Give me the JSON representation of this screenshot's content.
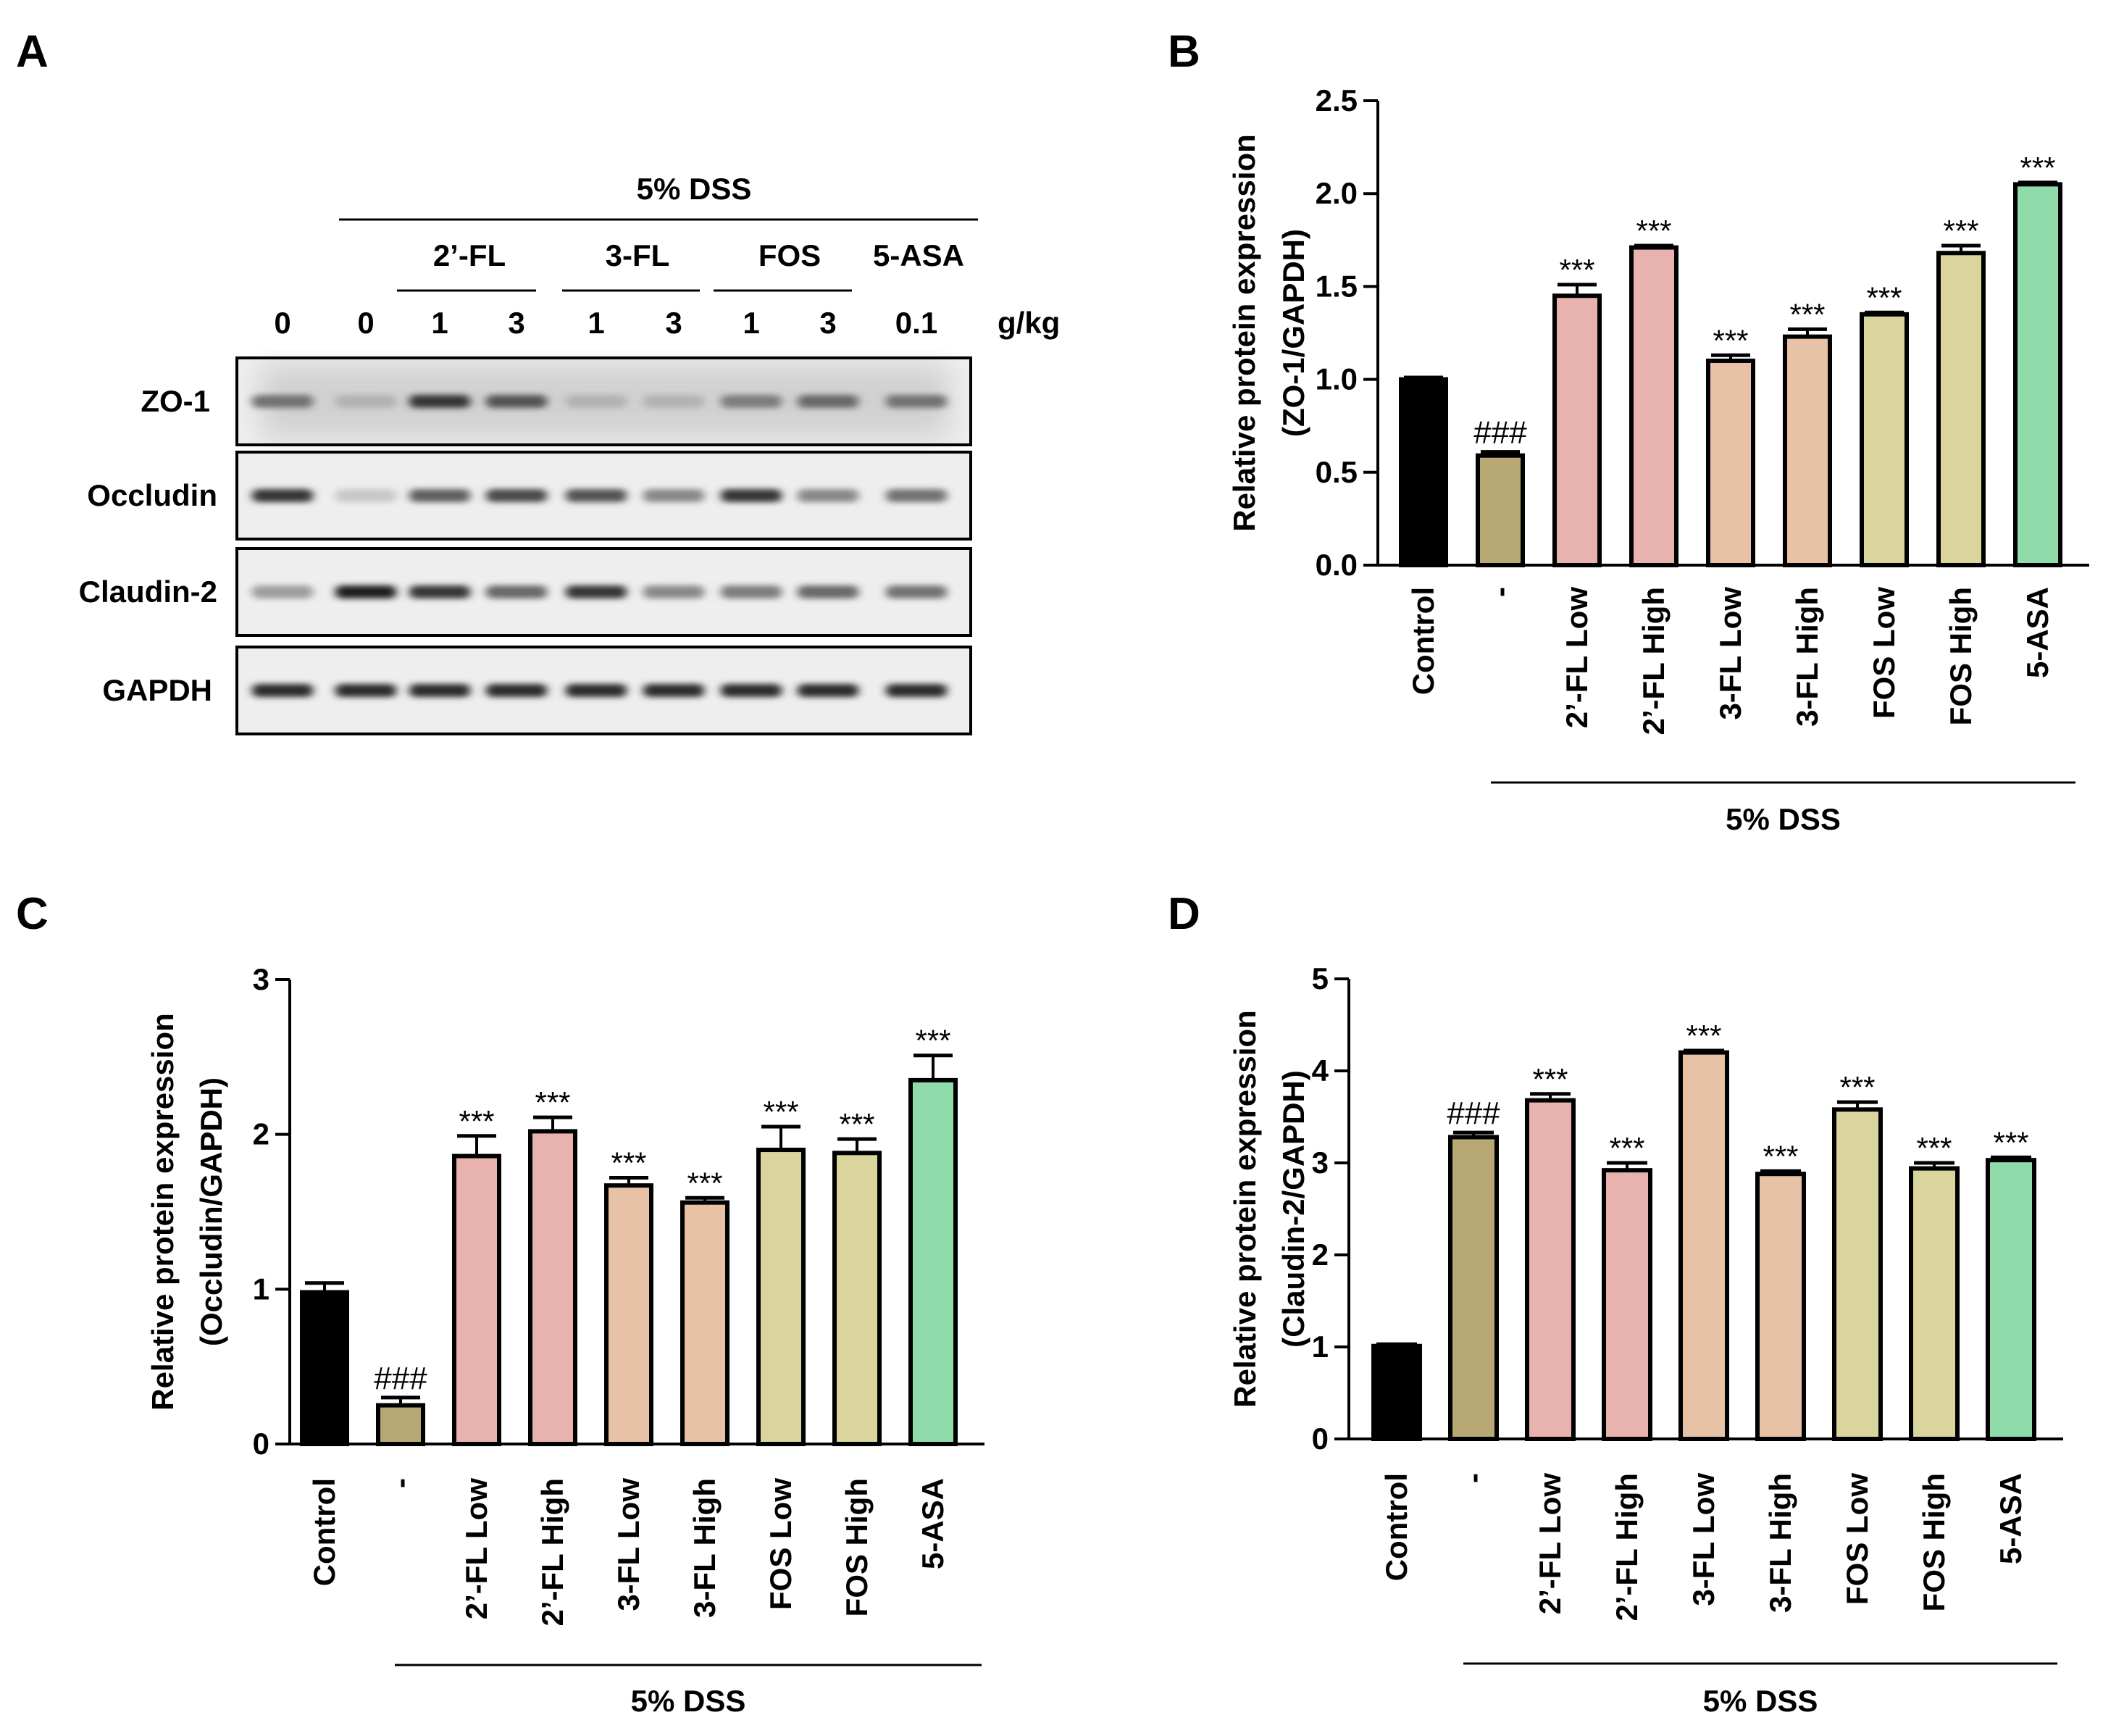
{
  "colors": {
    "black": "#000000",
    "olive": "#b8a874",
    "pink": "#e8b3ae",
    "peach": "#e8c2a6",
    "khaki": "#d9d59c",
    "green": "#8fdcaa"
  },
  "panel_a": {
    "letter": "A",
    "treatment": "5% DSS",
    "groups": [
      "2’-FL",
      "3-FL",
      "FOS",
      "5-ASA"
    ],
    "doses": [
      "0",
      "0",
      "1",
      "3",
      "1",
      "3",
      "1",
      "3",
      "0.1"
    ],
    "unit": "g/kg",
    "rows": [
      {
        "label": "ZO-1",
        "intensity": [
          0.55,
          0.25,
          0.85,
          0.7,
          0.25,
          0.25,
          0.5,
          0.6,
          0.55
        ],
        "smear": 0.35
      },
      {
        "label": "Occludin",
        "intensity": [
          0.85,
          0.15,
          0.65,
          0.75,
          0.7,
          0.45,
          0.85,
          0.45,
          0.55
        ],
        "smear": 0.0
      },
      {
        "label": "Claudin-2",
        "intensity": [
          0.35,
          0.95,
          0.85,
          0.6,
          0.85,
          0.45,
          0.5,
          0.6,
          0.55
        ],
        "smear": 0.0
      },
      {
        "label": "GAPDH",
        "intensity": [
          0.9,
          0.9,
          0.9,
          0.9,
          0.9,
          0.9,
          0.9,
          0.9,
          0.9
        ],
        "smear": 0.0
      }
    ]
  },
  "chart_data": [
    {
      "panel": "B",
      "type": "bar",
      "ylabel_line1": "Relative protein expression",
      "ylabel_line2": "(ZO-1/GAPDH)",
      "ylim": [
        0,
        2.5
      ],
      "yticks": [
        "0.0",
        "0.5",
        "1.0",
        "1.5",
        "2.0",
        "2.5"
      ],
      "tick_values": [
        0,
        0.5,
        1.0,
        1.5,
        2.0,
        2.5
      ],
      "categories": [
        "Control",
        "-",
        "2’-FL Low",
        "2’-FL High",
        "3-FL Low",
        "3-FL High",
        "FOS Low",
        "FOS High",
        "5-ASA"
      ],
      "values": [
        1.0,
        0.59,
        1.45,
        1.71,
        1.1,
        1.23,
        1.35,
        1.68,
        2.05
      ],
      "errors": [
        0.01,
        0.02,
        0.06,
        0.01,
        0.03,
        0.04,
        0.01,
        0.04,
        0.01
      ],
      "annotations": [
        "",
        "###",
        "***",
        "***",
        "***",
        "***",
        "***",
        "***",
        "***"
      ],
      "bar_colors": [
        "black",
        "olive",
        "pink",
        "pink",
        "peach",
        "peach",
        "khaki",
        "khaki",
        "green"
      ],
      "group_label": "5% DSS"
    },
    {
      "panel": "C",
      "type": "bar",
      "ylabel_line1": "Relative protein expression",
      "ylabel_line2": "(Occludin/GAPDH)",
      "ylim": [
        0,
        3
      ],
      "yticks": [
        "0",
        "1",
        "2",
        "3"
      ],
      "tick_values": [
        0,
        1,
        2,
        3
      ],
      "categories": [
        "Control",
        "-",
        "2’-FL Low",
        "2’-FL High",
        "3-FL Low",
        "3-FL High",
        "FOS Low",
        "FOS High",
        "5-ASA"
      ],
      "values": [
        0.98,
        0.25,
        1.86,
        2.02,
        1.67,
        1.56,
        1.9,
        1.88,
        2.35
      ],
      "errors": [
        0.06,
        0.05,
        0.13,
        0.09,
        0.05,
        0.03,
        0.15,
        0.09,
        0.16
      ],
      "annotations": [
        "",
        "###",
        "***",
        "***",
        "***",
        "***",
        "***",
        "***",
        "***"
      ],
      "bar_colors": [
        "black",
        "olive",
        "pink",
        "pink",
        "peach",
        "peach",
        "khaki",
        "khaki",
        "green"
      ],
      "group_label": "5% DSS"
    },
    {
      "panel": "D",
      "type": "bar",
      "ylabel_line1": "Relative protein expression",
      "ylabel_line2": "(Claudin-2/GAPDH)",
      "ylim": [
        0,
        5
      ],
      "yticks": [
        "0",
        "1",
        "2",
        "3",
        "4",
        "5"
      ],
      "tick_values": [
        0,
        1,
        2,
        3,
        4,
        5
      ],
      "categories": [
        "Control",
        "-",
        "2’-FL Low",
        "2’-FL High",
        "3-FL Low",
        "3-FL High",
        "FOS Low",
        "FOS High",
        "5-ASA"
      ],
      "values": [
        1.01,
        3.28,
        3.68,
        2.92,
        4.2,
        2.88,
        3.58,
        2.94,
        3.03
      ],
      "errors": [
        0.02,
        0.05,
        0.07,
        0.08,
        0.02,
        0.03,
        0.08,
        0.06,
        0.03
      ],
      "annotations": [
        "",
        "###",
        "***",
        "***",
        "***",
        "***",
        "***",
        "***",
        "***"
      ],
      "bar_colors": [
        "black",
        "olive",
        "pink",
        "pink",
        "peach",
        "peach",
        "khaki",
        "khaki",
        "green"
      ],
      "group_label": "5% DSS"
    }
  ]
}
